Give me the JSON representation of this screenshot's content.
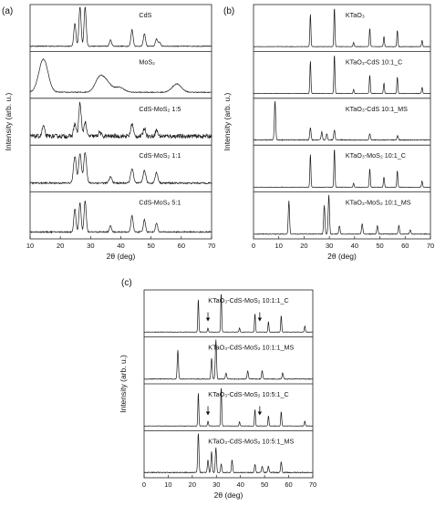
{
  "chart_data": [
    {
      "panel_label": "(a)",
      "type": "line",
      "xlabel": "2θ (deg)",
      "ylabel": "Intensity (arb. u.)",
      "xlim": [
        10,
        70
      ],
      "xticks": [
        10,
        20,
        30,
        40,
        50,
        60,
        70
      ],
      "series": [
        {
          "name": "CdS",
          "peaks": [
            [
              24.8,
              0.55
            ],
            [
              26.5,
              0.95
            ],
            [
              28.2,
              0.95
            ],
            [
              36.6,
              0.15
            ],
            [
              43.7,
              0.4
            ],
            [
              47.8,
              0.3
            ],
            [
              51.8,
              0.18
            ],
            [
              52.8,
              0.1
            ]
          ],
          "baseline": 0.06,
          "noise": 0.01,
          "width": 0.35
        },
        {
          "name": "MoS₂",
          "peaks": [
            [
              14.4,
              0.8
            ],
            [
              33.0,
              0.35
            ],
            [
              35.5,
              0.2
            ],
            [
              39.5,
              0.12
            ],
            [
              58.5,
              0.2
            ]
          ],
          "baseline": 0.08,
          "noise": 0.01,
          "width": 1.5
        },
        {
          "name": "CdS-MoS₂ 1:5",
          "peaks": [
            [
              14.4,
              0.25
            ],
            [
              24.8,
              0.3
            ],
            [
              26.5,
              0.8
            ],
            [
              28.2,
              0.35
            ],
            [
              33.0,
              0.1
            ],
            [
              43.7,
              0.3
            ],
            [
              47.8,
              0.2
            ],
            [
              51.8,
              0.15
            ]
          ],
          "baseline": 0.15,
          "noise": 0.05,
          "width": 0.4
        },
        {
          "name": "CdS-MoS₂ 1:1",
          "peaks": [
            [
              24.8,
              0.65
            ],
            [
              26.5,
              0.7
            ],
            [
              28.2,
              0.75
            ],
            [
              36.6,
              0.15
            ],
            [
              43.7,
              0.35
            ],
            [
              47.8,
              0.3
            ],
            [
              51.8,
              0.25
            ]
          ],
          "baseline": 0.15,
          "noise": 0.02,
          "width": 0.45
        },
        {
          "name": "CdS-MoS₂ 5:1",
          "peaks": [
            [
              24.8,
              0.55
            ],
            [
              26.5,
              0.7
            ],
            [
              28.2,
              0.75
            ],
            [
              36.6,
              0.15
            ],
            [
              43.7,
              0.4
            ],
            [
              47.8,
              0.3
            ],
            [
              51.8,
              0.22
            ]
          ],
          "baseline": 0.1,
          "noise": 0.015,
          "width": 0.35
        }
      ]
    },
    {
      "panel_label": "(b)",
      "type": "line",
      "xlabel": "2θ (deg)",
      "ylabel": "Intensity (arb. u.)",
      "xlim": [
        0,
        70
      ],
      "xticks": [
        0,
        10,
        20,
        30,
        40,
        50,
        60,
        70
      ],
      "series": [
        {
          "name": "KTaO₃",
          "peaks": [
            [
              22.5,
              0.8
            ],
            [
              32.0,
              0.95
            ],
            [
              39.6,
              0.1
            ],
            [
              46.0,
              0.45
            ],
            [
              51.6,
              0.25
            ],
            [
              56.9,
              0.4
            ],
            [
              66.7,
              0.15
            ]
          ],
          "baseline": 0.05,
          "noise": 0.005,
          "width": 0.2
        },
        {
          "name": "KTaO₃-CdS 10:1_C",
          "peaks": [
            [
              22.5,
              0.8
            ],
            [
              32.0,
              0.95
            ],
            [
              39.6,
              0.1
            ],
            [
              46.0,
              0.45
            ],
            [
              51.6,
              0.25
            ],
            [
              56.9,
              0.4
            ],
            [
              66.7,
              0.15
            ]
          ],
          "baseline": 0.05,
          "noise": 0.005,
          "width": 0.2
        },
        {
          "name": "KTaO₃-CdS 10:1_MS",
          "peaks": [
            [
              8.5,
              0.95
            ],
            [
              22.5,
              0.3
            ],
            [
              27.0,
              0.2
            ],
            [
              29.0,
              0.15
            ],
            [
              32.0,
              0.25
            ],
            [
              46.0,
              0.15
            ],
            [
              57.0,
              0.1
            ]
          ],
          "baseline": 0.06,
          "noise": 0.01,
          "width": 0.25
        },
        {
          "name": "KTaO₃-MoS₂ 10:1_C",
          "peaks": [
            [
              22.5,
              0.8
            ],
            [
              32.0,
              0.95
            ],
            [
              39.6,
              0.1
            ],
            [
              46.0,
              0.45
            ],
            [
              51.6,
              0.25
            ],
            [
              56.9,
              0.4
            ],
            [
              66.7,
              0.15
            ]
          ],
          "baseline": 0.05,
          "noise": 0.005,
          "width": 0.2
        },
        {
          "name": "KTaO₃-MoS₂ 10:1_MS",
          "peaks": [
            [
              14.0,
              0.8
            ],
            [
              28.0,
              0.7
            ],
            [
              29.8,
              0.95
            ],
            [
              34.0,
              0.2
            ],
            [
              43.0,
              0.25
            ],
            [
              49.0,
              0.2
            ],
            [
              57.5,
              0.2
            ],
            [
              62.0,
              0.1
            ]
          ],
          "baseline": 0.05,
          "noise": 0.008,
          "width": 0.25
        }
      ]
    },
    {
      "panel_label": "(c)",
      "type": "line",
      "xlabel": "2θ (deg)",
      "ylabel": "Intensity (arb. u.)",
      "xlim": [
        0,
        70
      ],
      "xticks": [
        0,
        10,
        20,
        30,
        40,
        50,
        60,
        70
      ],
      "series": [
        {
          "name": "KTaO₃-CdS-MoS₂ 10:1:1_C",
          "peaks": [
            [
              22.5,
              0.8
            ],
            [
              26.5,
              0.1
            ],
            [
              32.0,
              0.95
            ],
            [
              39.6,
              0.1
            ],
            [
              46.0,
              0.45
            ],
            [
              51.6,
              0.25
            ],
            [
              56.9,
              0.4
            ],
            [
              66.7,
              0.15
            ]
          ],
          "baseline": 0.05,
          "noise": 0.005,
          "width": 0.2,
          "arrows": [
            26.5,
            48.0
          ]
        },
        {
          "name": "KTaO₃-CdS-MoS₂ 10:1:1_MS",
          "peaks": [
            [
              14.0,
              0.7
            ],
            [
              28.0,
              0.5
            ],
            [
              29.8,
              0.95
            ],
            [
              34.0,
              0.15
            ],
            [
              43.0,
              0.2
            ],
            [
              49.0,
              0.2
            ],
            [
              57.5,
              0.15
            ]
          ],
          "baseline": 0.05,
          "noise": 0.008,
          "width": 0.25
        },
        {
          "name": "KTaO₃-CdS-MoS₂ 10:5:1_C",
          "peaks": [
            [
              22.5,
              0.8
            ],
            [
              26.5,
              0.12
            ],
            [
              32.0,
              0.95
            ],
            [
              39.6,
              0.1
            ],
            [
              46.0,
              0.4
            ],
            [
              51.6,
              0.25
            ],
            [
              56.9,
              0.35
            ],
            [
              66.7,
              0.12
            ]
          ],
          "baseline": 0.05,
          "noise": 0.005,
          "width": 0.2,
          "arrows": [
            26.5,
            48.0
          ]
        },
        {
          "name": "KTaO₃-CdS-MoS₂ 10:5:1_MS",
          "peaks": [
            [
              22.5,
              0.95
            ],
            [
              26.5,
              0.3
            ],
            [
              28.0,
              0.5
            ],
            [
              29.8,
              0.6
            ],
            [
              32.0,
              0.2
            ],
            [
              36.5,
              0.3
            ],
            [
              46.0,
              0.2
            ],
            [
              49.0,
              0.15
            ],
            [
              51.6,
              0.15
            ],
            [
              56.9,
              0.25
            ]
          ],
          "baseline": 0.06,
          "noise": 0.01,
          "width": 0.25
        }
      ]
    }
  ]
}
